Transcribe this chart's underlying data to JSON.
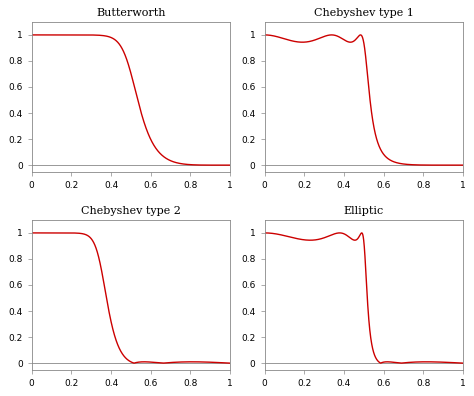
{
  "titles": [
    "Butterworth",
    "Chebyshev type 1",
    "Chebyshev type 2",
    "Elliptic"
  ],
  "line_color": "#cc0000",
  "line_width": 1.0,
  "background_color": "#ffffff",
  "xlim": [
    0,
    1
  ],
  "ylim": [
    -0.05,
    1.1
  ],
  "yticks": [
    0,
    0.2,
    0.4,
    0.6,
    0.8,
    1
  ],
  "xticks": [
    0,
    0.2,
    0.4,
    0.6,
    0.8,
    1
  ],
  "filter_order": 5,
  "cutoff": 0.5,
  "rp": 0.5,
  "rs": 40,
  "title_fontsize": 8,
  "tick_fontsize": 6.5,
  "figsize": [
    4.74,
    3.96
  ],
  "dpi": 100
}
